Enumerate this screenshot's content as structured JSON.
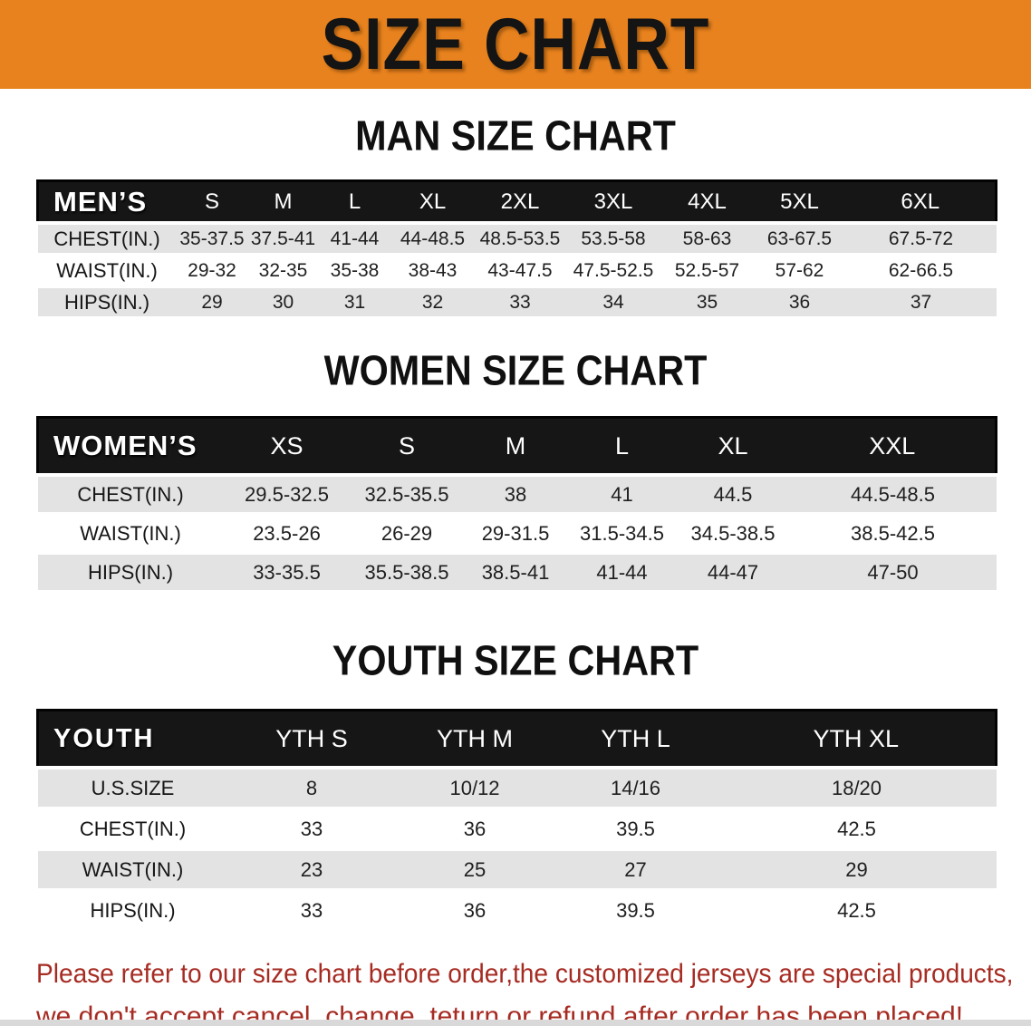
{
  "banner": {
    "title": "SIZE CHART"
  },
  "colors": {
    "banner_orange": "#E8821E",
    "header_black": "#161616",
    "row_gray": "#E3E3E3",
    "row_white": "#FFFFFF",
    "disclaimer_red": "#A62B22"
  },
  "men": {
    "heading": "MAN SIZE CHART",
    "table": {
      "corner": "MEN’S",
      "columns": [
        "S",
        "M",
        "L",
        "XL",
        "2XL",
        "3XL",
        "4XL",
        "5XL",
        "6XL"
      ],
      "rows": [
        {
          "label": "CHEST(IN.)",
          "values": [
            "35-37.5",
            "37.5-41",
            "41-44",
            "44-48.5",
            "48.5-53.5",
            "53.5-58",
            "58-63",
            "63-67.5",
            "67.5-72"
          ]
        },
        {
          "label": "WAIST(IN.)",
          "values": [
            "29-32",
            "32-35",
            "35-38",
            "38-43",
            "43-47.5",
            "47.5-52.5",
            "52.5-57",
            "57-62",
            "62-66.5"
          ]
        },
        {
          "label": "HIPS(IN.)",
          "values": [
            "29",
            "30",
            "31",
            "32",
            "33",
            "34",
            "35",
            "36",
            "37"
          ]
        }
      ]
    }
  },
  "women": {
    "heading": "WOMEN SIZE CHART",
    "table": {
      "corner": "WOMEN’S",
      "columns": [
        "XS",
        "S",
        "M",
        "L",
        "XL",
        "XXL"
      ],
      "rows": [
        {
          "label": "CHEST(IN.)",
          "values": [
            "29.5-32.5",
            "32.5-35.5",
            "38",
            "41",
            "44.5",
            "44.5-48.5"
          ]
        },
        {
          "label": "WAIST(IN.)",
          "values": [
            "23.5-26",
            "26-29",
            "29-31.5",
            "31.5-34.5",
            "34.5-38.5",
            "38.5-42.5"
          ]
        },
        {
          "label": "HIPS(IN.)",
          "values": [
            "33-35.5",
            "35.5-38.5",
            "38.5-41",
            "41-44",
            "44-47",
            "47-50"
          ]
        }
      ]
    }
  },
  "youth": {
    "heading": "YOUTH SIZE CHART",
    "table": {
      "corner": "YOUTH",
      "columns": [
        "YTH S",
        "YTH M",
        "YTH L",
        "YTH XL"
      ],
      "rows": [
        {
          "label": "U.S.SIZE",
          "values": [
            "8",
            "10/12",
            "14/16",
            "18/20"
          ]
        },
        {
          "label": "CHEST(IN.)",
          "values": [
            "33",
            "36",
            "39.5",
            "42.5"
          ]
        },
        {
          "label": "WAIST(IN.)",
          "values": [
            "23",
            "25",
            "27",
            "29"
          ]
        },
        {
          "label": "HIPS(IN.)",
          "values": [
            "33",
            "36",
            "39.5",
            "42.5"
          ]
        }
      ]
    }
  },
  "disclaimer": {
    "line1": "Please refer to our size chart before order,the customized jerseys are special products,",
    "line2": "we don't accept cancel, change, teturn or refund after order has been placed!"
  }
}
